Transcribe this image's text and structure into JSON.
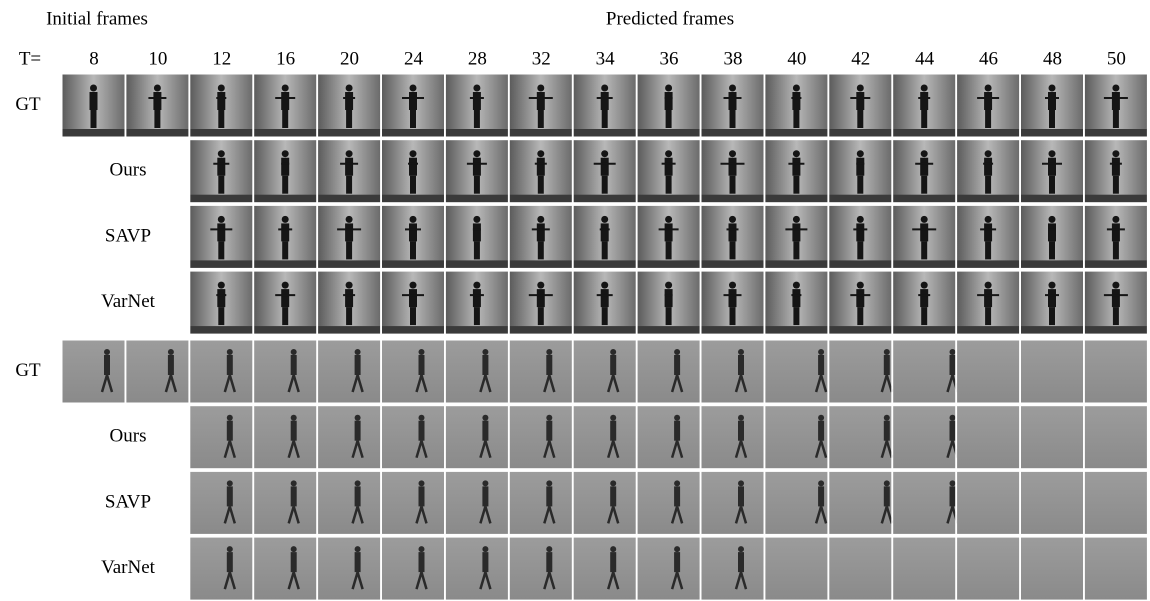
{
  "header": {
    "initial": "Initial frames",
    "predicted": "Predicted frames"
  },
  "time_label": "T=",
  "times": [
    "8",
    "10",
    "12",
    "16",
    "20",
    "24",
    "28",
    "32",
    "34",
    "36",
    "38",
    "40",
    "42",
    "44",
    "46",
    "48",
    "50"
  ],
  "groups": [
    {
      "rows": [
        "GT",
        "Ours",
        "SAVP",
        "VarNet"
      ]
    },
    {
      "rows": [
        "GT",
        "Ours",
        "SAVP",
        "VarNet"
      ]
    }
  ]
}
